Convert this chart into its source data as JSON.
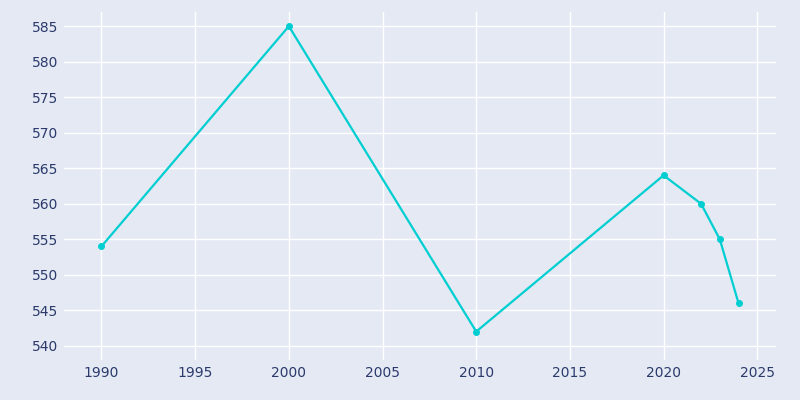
{
  "x": [
    1990,
    2000,
    2010,
    2020,
    2022,
    2023,
    2024
  ],
  "y": [
    554,
    585,
    542,
    564,
    560,
    555,
    546
  ],
  "line_color": "#00CED1",
  "background_color": "#E4E9F4",
  "grid_color": "#FFFFFF",
  "tick_color": "#2B3A6B",
  "xlim": [
    1988,
    2026
  ],
  "ylim": [
    538,
    587
  ],
  "yticks": [
    540,
    545,
    550,
    555,
    560,
    565,
    570,
    575,
    580,
    585
  ],
  "xticks": [
    1990,
    1995,
    2000,
    2005,
    2010,
    2015,
    2020,
    2025
  ],
  "linewidth": 1.6,
  "markersize": 4.0
}
